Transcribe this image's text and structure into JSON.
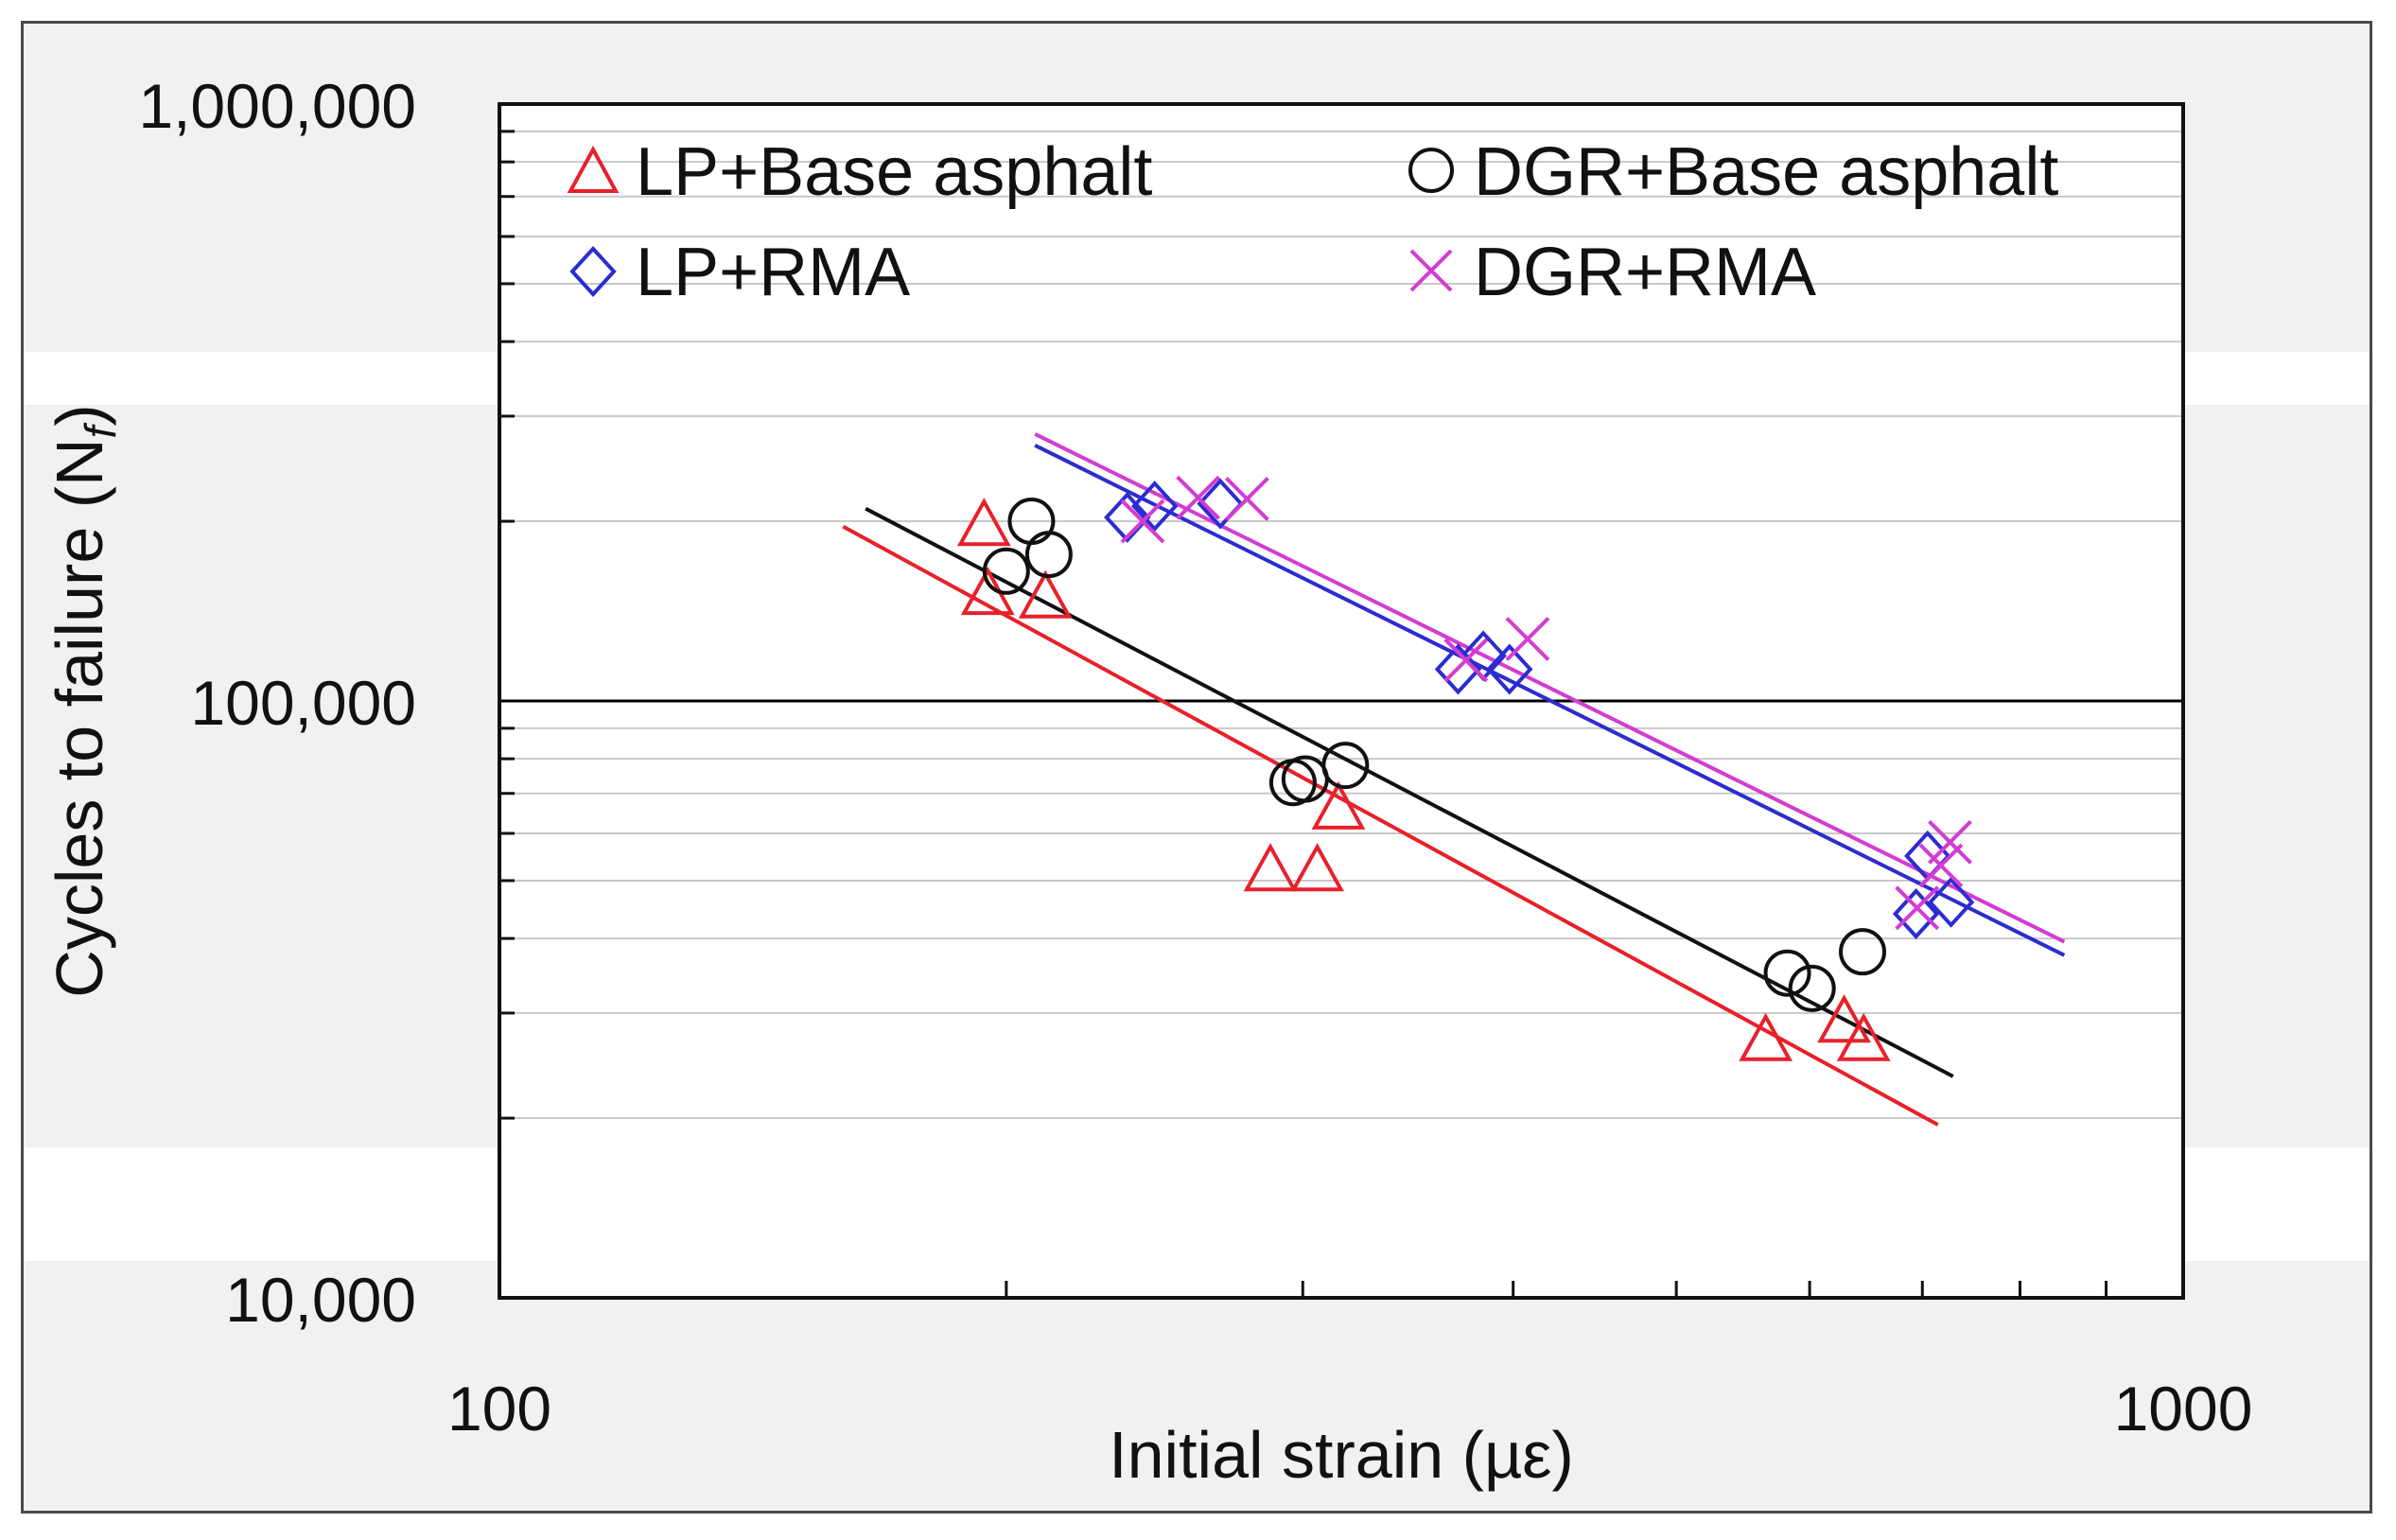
{
  "chart_data": {
    "type": "scatter",
    "title": "",
    "xlabel": "Initial strain (µε)",
    "ylabel": "Cycles to failure (N",
    "ylabel_subscript": "f",
    "ylabel_close": ")",
    "xscale": "log",
    "yscale": "log",
    "xlim": [
      100,
      1000
    ],
    "ylim": [
      10000,
      1000000
    ],
    "x_tick_labels": [
      "100",
      "1000"
    ],
    "y_tick_labels": [
      "10,000",
      "100,000",
      "1,000,000"
    ],
    "legend_position": "top",
    "series": [
      {
        "name": "LP+Base asphalt",
        "marker": "triangle",
        "color": "#e8202a",
        "x": [
          194,
          211,
          195,
          287,
          306,
          315,
          565,
          629,
          646
        ],
        "y": [
          197000,
          149000,
          151000,
          52000,
          52000,
          66000,
          27000,
          29000,
          27000
        ],
        "fit_x": [
          160,
          715
        ],
        "fit_y": [
          196000,
          19500
        ]
      },
      {
        "name": "DGR+Base asphalt",
        "marker": "circle",
        "color": "#111111",
        "x": [
          207,
          200,
          212,
          296,
          301,
          318,
          582,
          602,
          645
        ],
        "y": [
          200000,
          165000,
          176000,
          73000,
          74000,
          78000,
          35000,
          33000,
          38000
        ],
        "fit_x": [
          165,
          730
        ],
        "fit_y": [
          210000,
          23500
        ]
      },
      {
        "name": "LP+RMA",
        "marker": "diamond",
        "color": "#2c2cd0",
        "x": [
          236,
          245,
          268,
          371,
          384,
          398,
          694,
          705,
          728
        ],
        "y": [
          203000,
          212000,
          214000,
          113000,
          119000,
          113000,
          44000,
          55000,
          46000
        ],
        "fit_x": [
          208,
          850
        ],
        "fit_y": [
          268000,
          37500
        ]
      },
      {
        "name": "DGR+RMA",
        "marker": "x",
        "color": "#d33cd3",
        "x": [
          241,
          260,
          278,
          375,
          408,
          695,
          718,
          727
        ],
        "y": [
          200000,
          219000,
          218000,
          117000,
          127000,
          45000,
          53000,
          58000
        ],
        "fit_x": [
          208,
          850
        ],
        "fit_y": [
          280000,
          39500
        ]
      }
    ]
  }
}
